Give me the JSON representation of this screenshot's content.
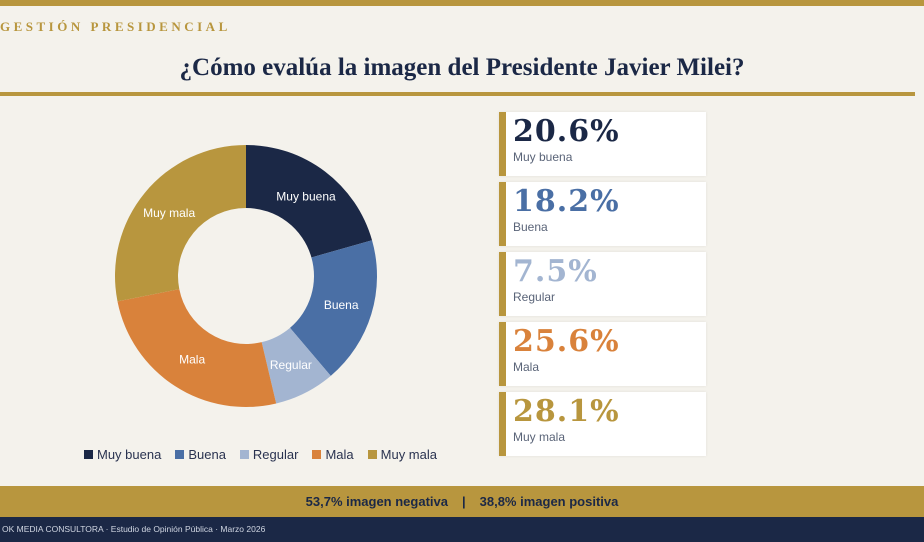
{
  "header": {
    "section": "GESTIÓN PRESIDENCIAL",
    "title": "¿Cómo evalúa la imagen del Presidente Javier Milei?"
  },
  "chart_data": {
    "type": "pie",
    "donut": true,
    "categories": [
      "Muy buena",
      "Buena",
      "Regular",
      "Mala",
      "Muy mala"
    ],
    "values": [
      20.6,
      18.2,
      7.5,
      25.6,
      28.1
    ],
    "colors": [
      "#1b2846",
      "#4a6fa5",
      "#a3b5d1",
      "#d9823b",
      "#b8963e"
    ],
    "legend_position": "bottom"
  },
  "cards": [
    {
      "value": "20.6%",
      "label": "Muy buena"
    },
    {
      "value": "18.2%",
      "label": "Buena"
    },
    {
      "value": "7.5%",
      "label": "Regular"
    },
    {
      "value": "25.6%",
      "label": "Mala"
    },
    {
      "value": "28.1%",
      "label": "Muy mala"
    }
  ],
  "summary": {
    "negative": "53,7%  imagen negativa",
    "separator": "|",
    "positive": "38,8%  imagen positiva"
  },
  "footer": "OK MEDIA CONSULTORA  ·  Estudio de Opinión Pública  ·  Marzo 2026"
}
